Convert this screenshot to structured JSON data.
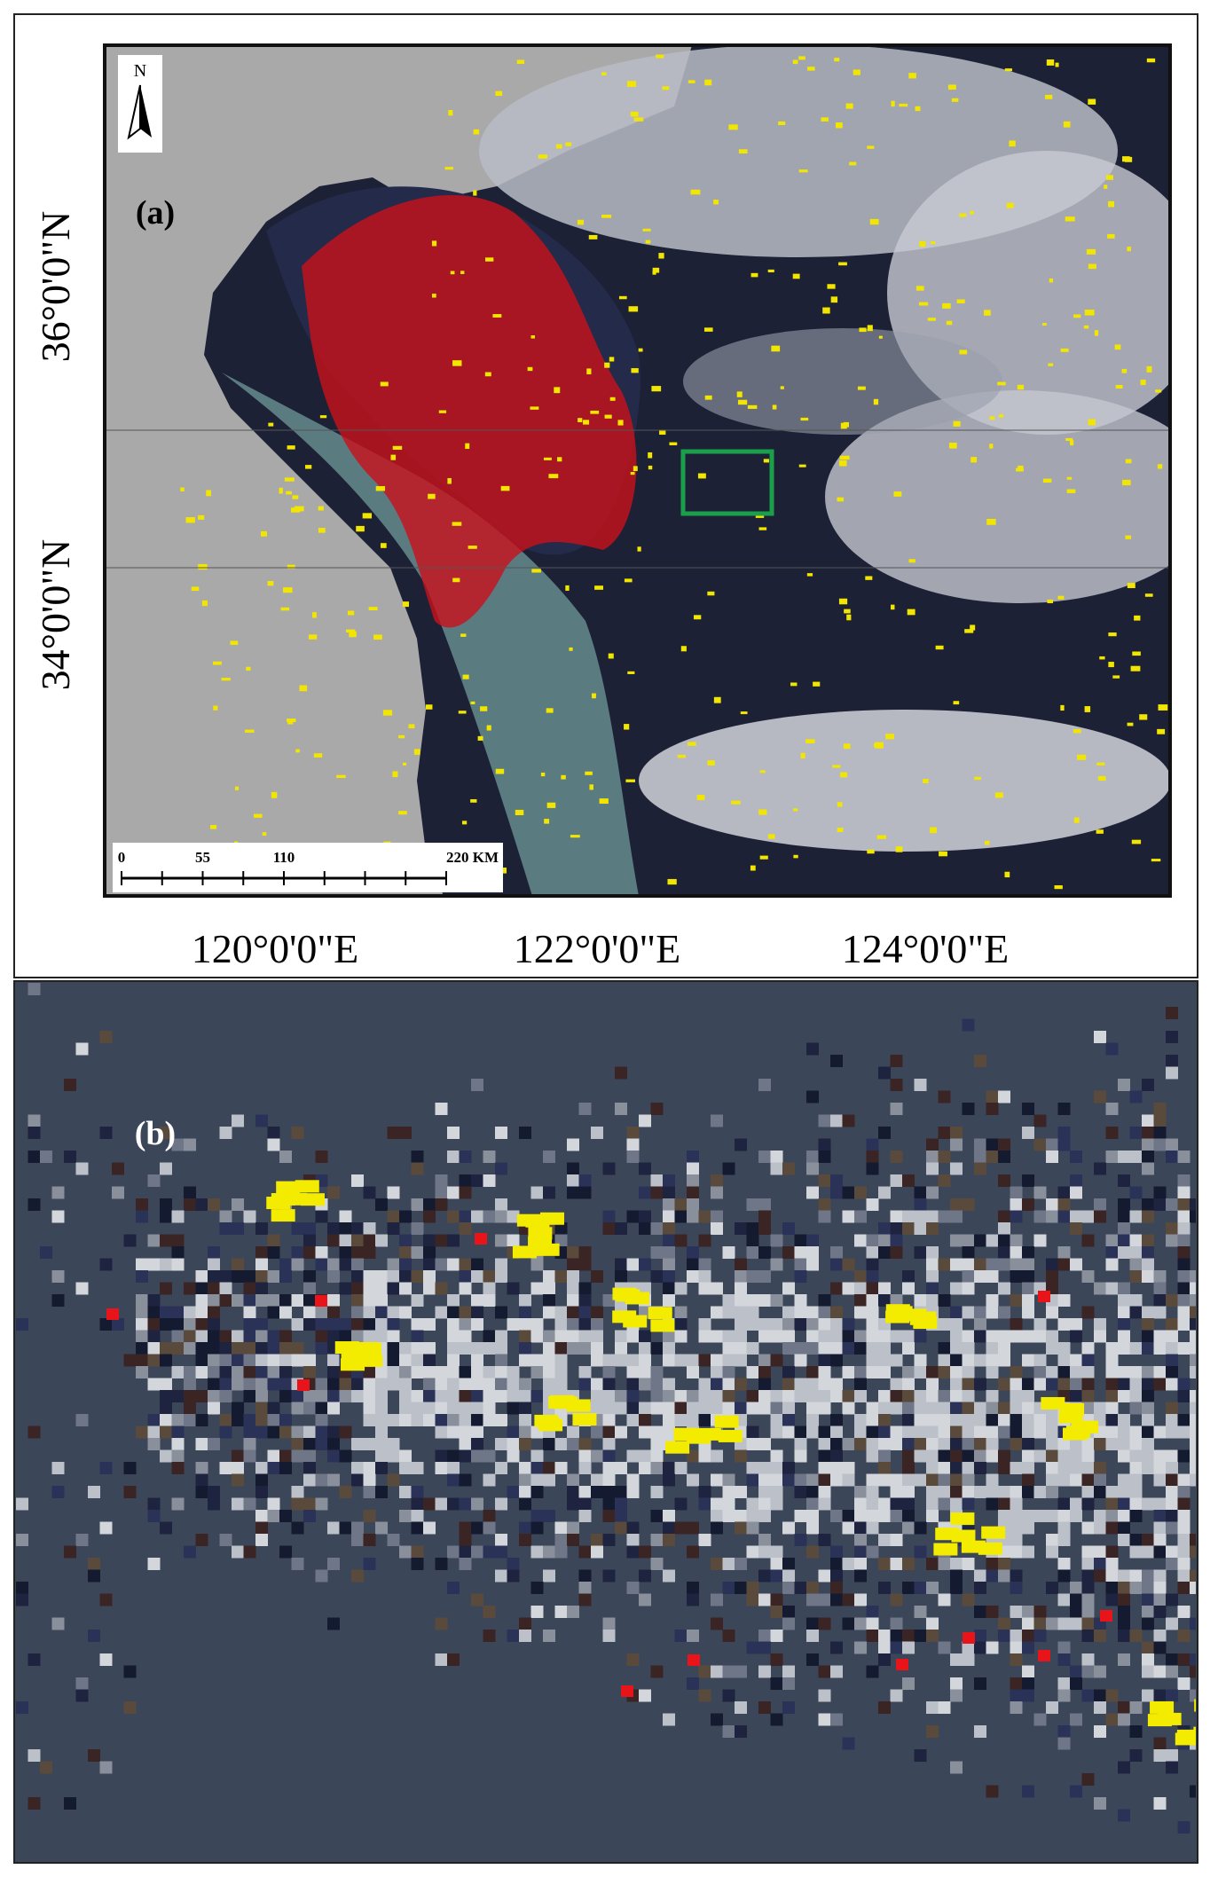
{
  "panel_a": {
    "label": "(a)",
    "north": "N",
    "lat_labels": [
      "36°0'0\"N",
      "34°0'0\"N"
    ],
    "lon_labels": [
      "120°0'0\"E",
      "122°0'0\"E",
      "124°0'0\"E"
    ],
    "scale_bar": [
      "0",
      "55",
      "110",
      "220 KM"
    ]
  },
  "panel_b": {
    "label": "(b)"
  }
}
